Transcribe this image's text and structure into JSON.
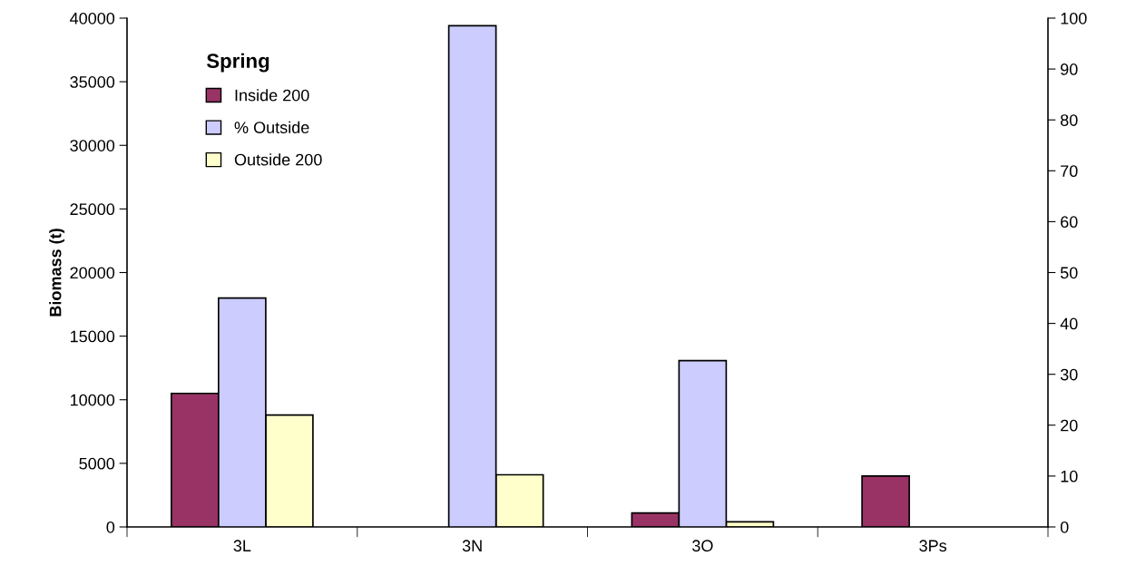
{
  "chart_data": {
    "type": "bar",
    "ylabel": "Biomass (t)",
    "legend_title": "Spring",
    "categories": [
      "3L",
      "3N",
      "3O",
      "3Ps"
    ],
    "series": [
      {
        "name": "Inside 200",
        "color": "#993366",
        "values": [
          10500,
          null,
          1100,
          4000
        ]
      },
      {
        "name": "% Outside",
        "color": "#ccccff",
        "axis": "y2",
        "values": [
          45,
          98.5,
          32.7,
          null
        ]
      },
      {
        "name": "Outside 200",
        "color": "#ffffcc",
        "values": [
          8800,
          4100,
          400,
          null
        ]
      }
    ],
    "ylim": [
      0,
      40000
    ],
    "yticks": [
      0,
      5000,
      10000,
      15000,
      20000,
      25000,
      30000,
      35000,
      40000
    ],
    "y2lim": [
      0,
      100
    ],
    "y2ticks": [
      0,
      10,
      20,
      30,
      40,
      50,
      60,
      70,
      80,
      90,
      100
    ],
    "grid": false,
    "legend": "top left"
  }
}
